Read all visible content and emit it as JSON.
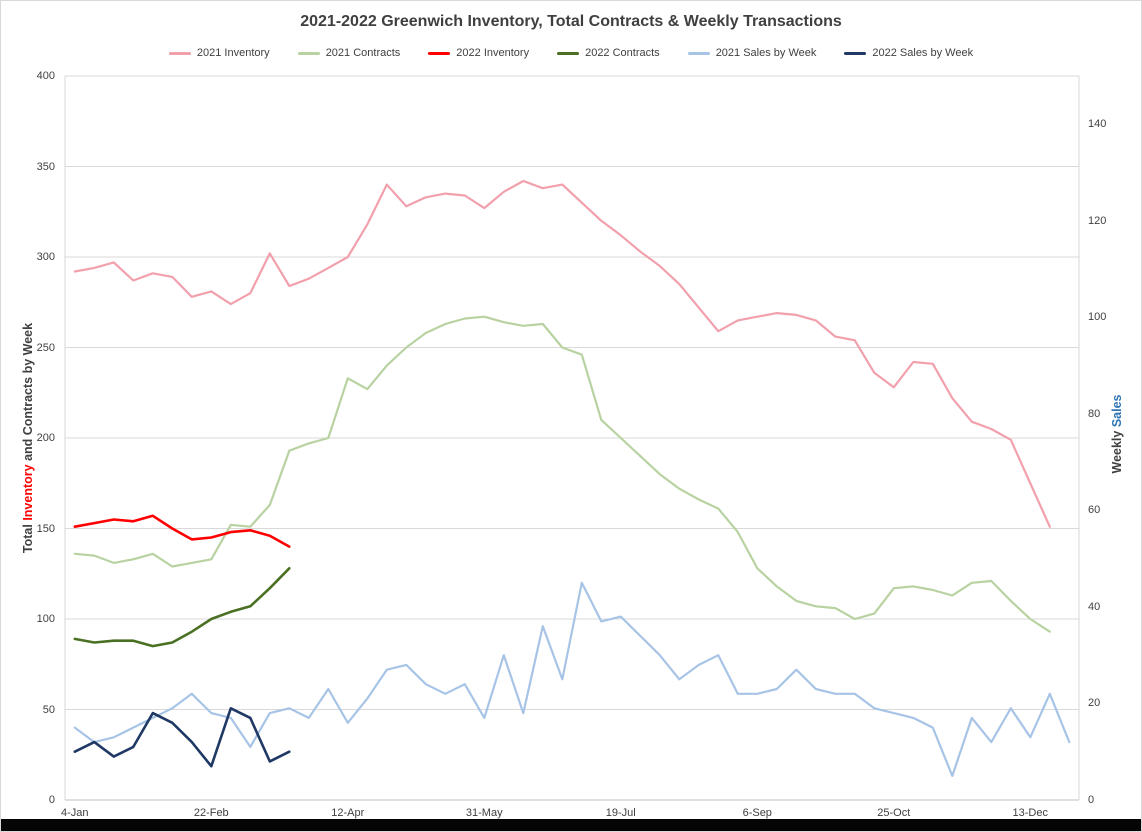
{
  "title": "2021-2022 Greenwich Inventory, Total Contracts & Weekly Transactions",
  "axes": {
    "left": {
      "title_parts": [
        {
          "text": "Total ",
          "color": "#404040"
        },
        {
          "text": "Inventory",
          "color": "#FF0000"
        },
        {
          "text": " and Contracts by Week",
          "color": "#404040"
        }
      ],
      "range": [
        0,
        400
      ],
      "ticks": [
        0,
        50,
        100,
        150,
        200,
        250,
        300,
        350,
        400
      ]
    },
    "right": {
      "title_parts": [
        {
          "text": "Weekly ",
          "color": "#404040"
        },
        {
          "text": "Sales",
          "color": "#2E74B5"
        }
      ],
      "range": [
        0,
        150
      ],
      "ticks": [
        0,
        20,
        40,
        60,
        80,
        100,
        120,
        140
      ]
    },
    "x": {
      "tick_labels": [
        "4-Jan",
        "22-Feb",
        "12-Apr",
        "31-May",
        "19-Jul",
        "6-Sep",
        "25-Oct",
        "13-Dec"
      ],
      "tick_weeks": [
        1,
        8,
        15,
        22,
        29,
        36,
        43,
        50
      ],
      "total_weeks": 52
    }
  },
  "colors": {
    "gridline": "#D9D9D9",
    "axis_line": "#BFBFBF",
    "title_text": "#3F3F3F",
    "tick_text": "#404040"
  },
  "chart_data": {
    "type": "line",
    "title": "2021-2022 Greenwich Inventory, Total Contracts & Weekly Transactions",
    "x_unit": "week of year (weekly points, 4-Jan through late Dec)",
    "left_axis_label": "Total Inventory and Contracts by Week",
    "right_axis_label": "Weekly Sales",
    "left_ylim": [
      0,
      400
    ],
    "right_ylim": [
      0,
      150
    ],
    "grid": true,
    "legend_position": "top",
    "series": [
      {
        "name": "2021 Inventory",
        "color": "#F1A0AC",
        "axis": "left",
        "stroke_width": 2.2,
        "start_week": 1,
        "values": [
          292,
          294,
          297,
          287,
          291,
          289,
          278,
          281,
          274,
          280,
          302,
          284,
          288,
          294,
          300,
          318,
          340,
          328,
          333,
          335,
          334,
          327,
          336,
          342,
          338,
          340,
          330,
          320,
          312,
          303,
          295,
          285,
          272,
          259,
          265,
          267,
          269,
          268,
          265,
          256,
          254,
          236,
          228,
          242,
          241,
          222,
          209,
          205,
          199,
          175,
          151
        ]
      },
      {
        "name": "2021 Contracts",
        "color": "#B8D2A1",
        "axis": "left",
        "stroke_width": 2.2,
        "start_week": 1,
        "values": [
          136,
          135,
          131,
          133,
          136,
          129,
          131,
          133,
          152,
          151,
          163,
          193,
          197,
          200,
          233,
          227,
          240,
          250,
          258,
          263,
          266,
          267,
          264,
          262,
          263,
          250,
          246,
          210,
          200,
          190,
          180,
          172,
          166,
          161,
          148,
          128,
          118,
          110,
          107,
          106,
          100,
          103,
          117,
          118,
          116,
          113,
          120,
          121,
          110,
          100,
          93
        ]
      },
      {
        "name": "2022 Inventory",
        "color": "#FF0000",
        "axis": "left",
        "stroke_width": 2.6,
        "start_week": 1,
        "values": [
          151,
          153,
          155,
          154,
          157,
          150,
          144,
          145,
          148,
          149,
          146,
          140
        ]
      },
      {
        "name": "2022 Contracts",
        "color": "#4A7023",
        "axis": "left",
        "stroke_width": 2.6,
        "start_week": 1,
        "values": [
          89,
          87,
          88,
          88,
          85,
          87,
          93,
          100,
          104,
          107,
          117,
          128
        ]
      },
      {
        "name": "2021 Sales by Week",
        "color": "#A7C4E6",
        "axis": "right",
        "stroke_width": 2.2,
        "start_week": 1,
        "values": [
          15,
          12,
          13,
          15,
          17,
          19,
          22,
          18,
          17,
          11,
          18,
          19,
          17,
          23,
          16,
          21,
          27,
          28,
          24,
          22,
          24,
          17,
          30,
          18,
          36,
          25,
          45,
          37,
          38,
          34,
          30,
          25,
          28,
          30,
          22,
          22,
          23,
          27,
          23,
          22,
          22,
          19,
          18,
          17,
          15,
          5,
          17,
          12,
          19,
          13,
          22,
          12
        ]
      },
      {
        "name": "2022 Sales by Week",
        "color": "#1F3864",
        "axis": "right",
        "stroke_width": 2.6,
        "start_week": 1,
        "values": [
          10,
          12,
          9,
          11,
          18,
          16,
          12,
          7,
          19,
          17,
          8,
          10
        ]
      }
    ]
  }
}
